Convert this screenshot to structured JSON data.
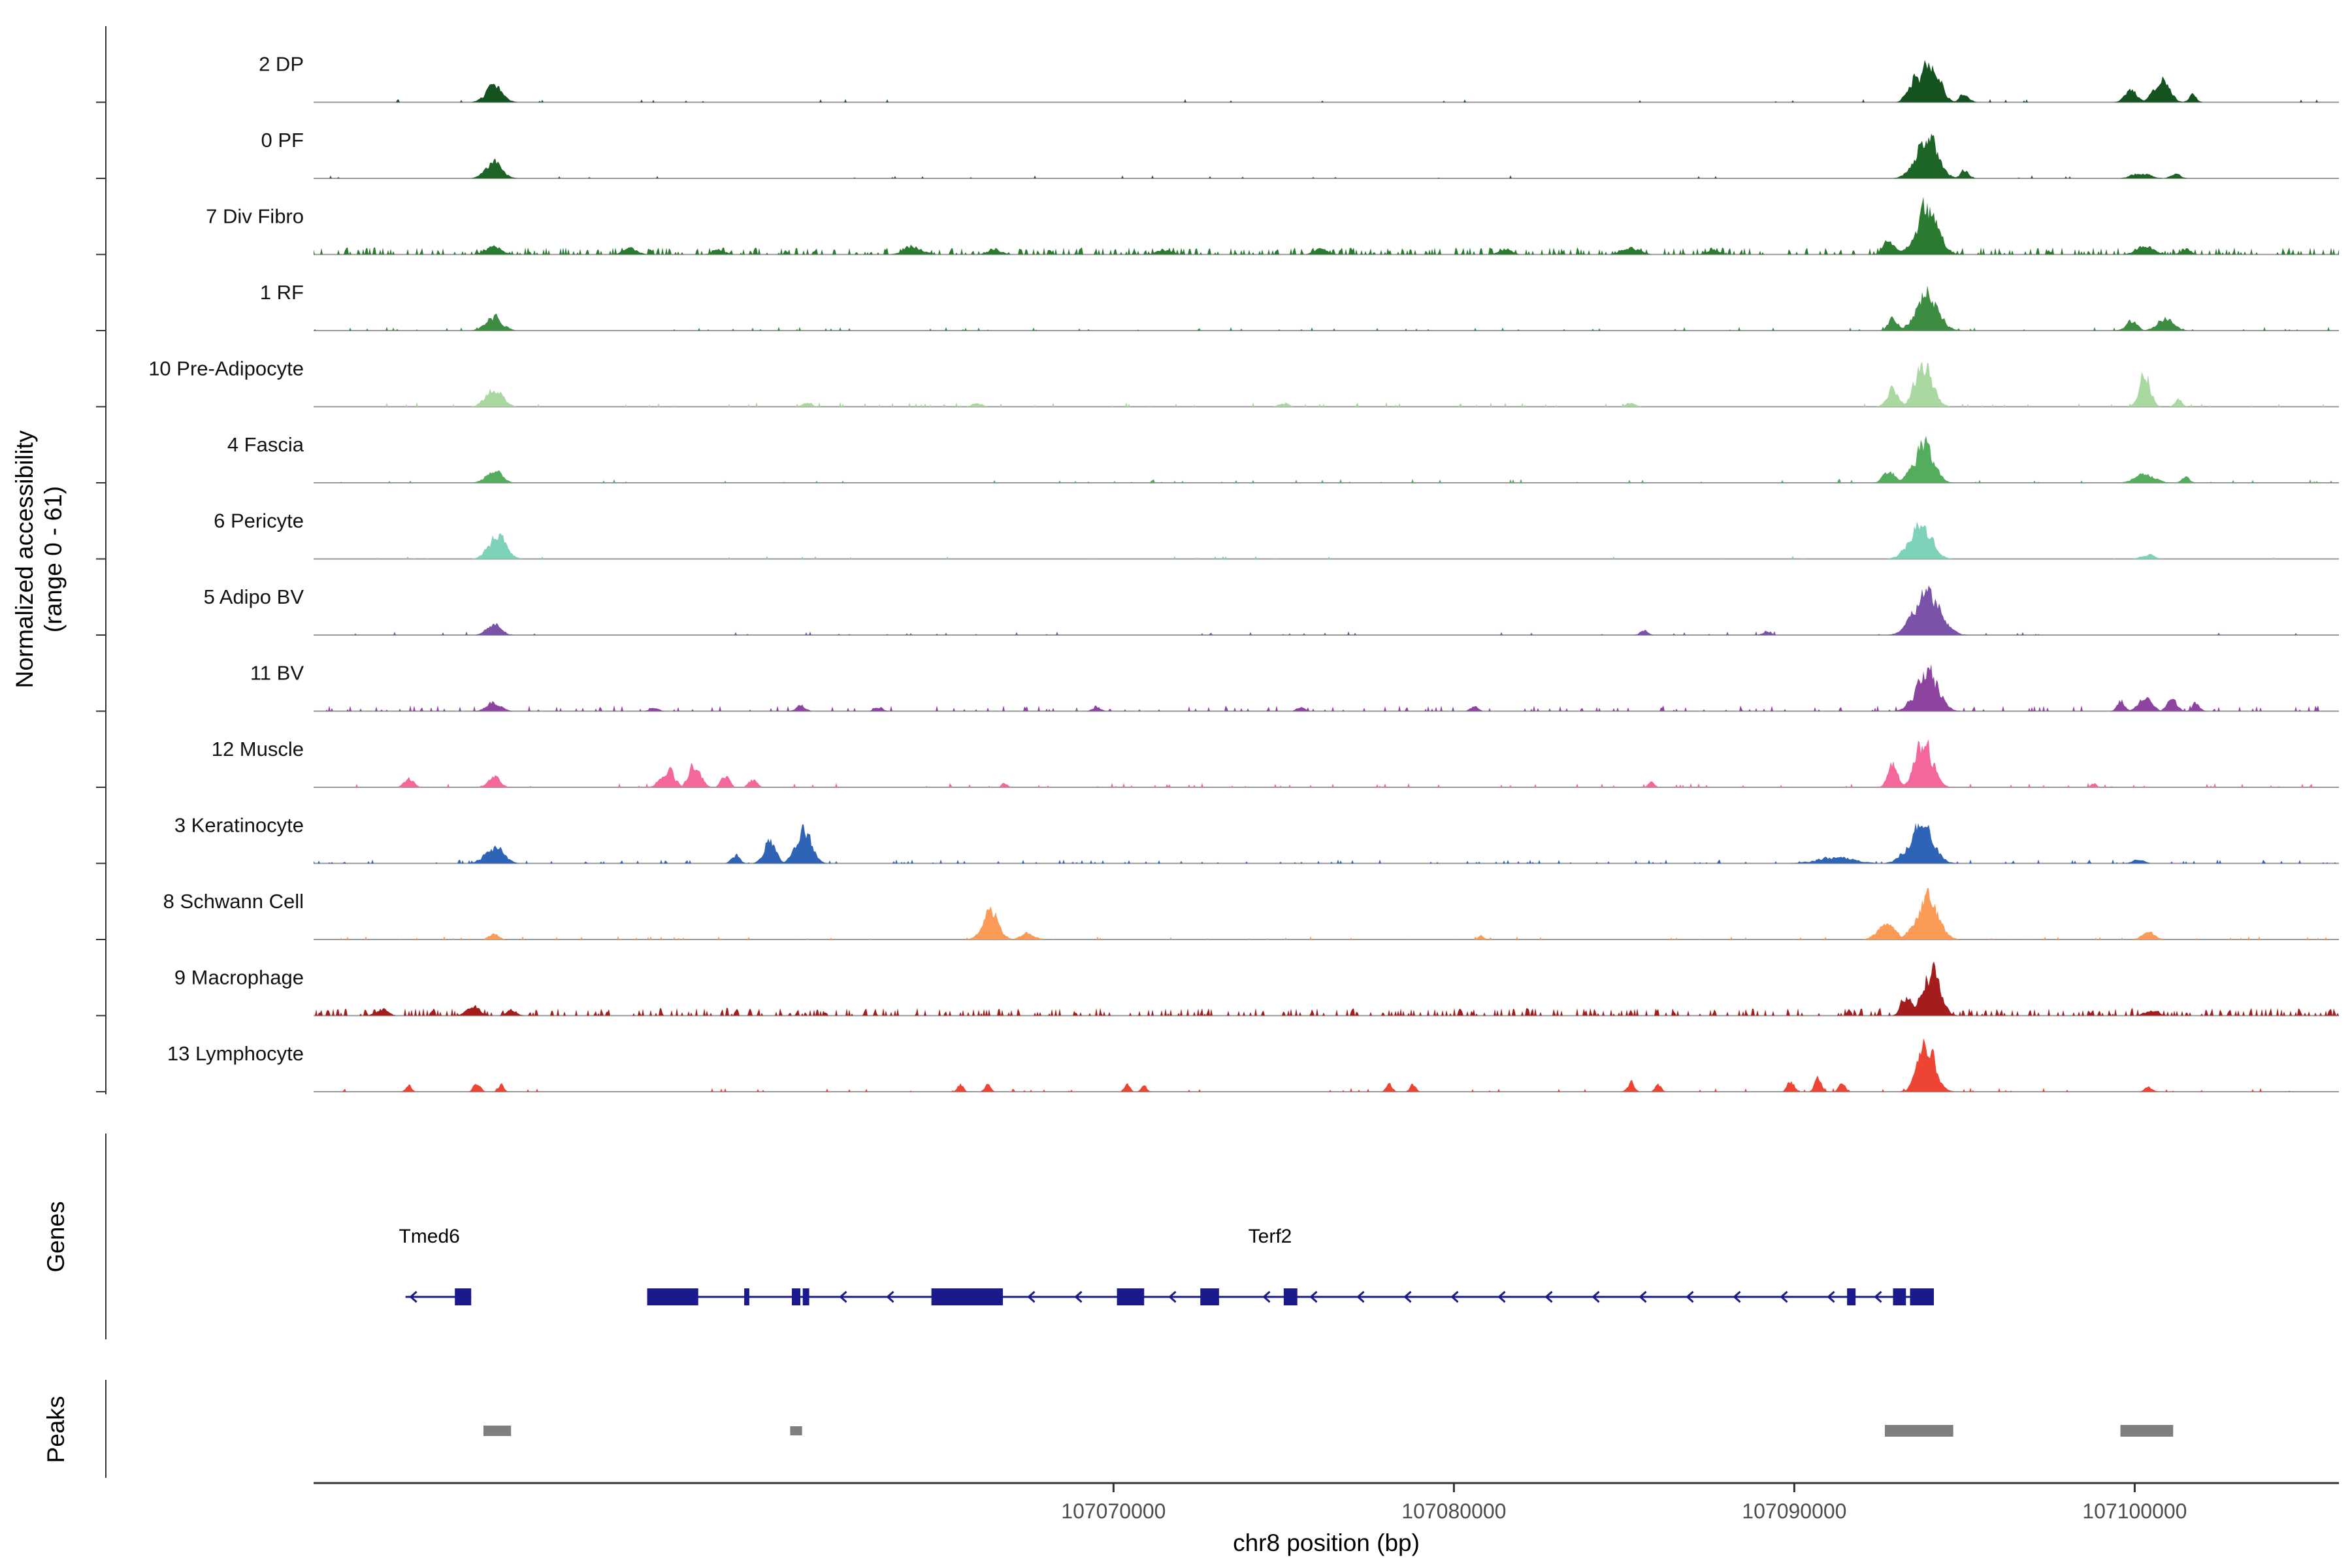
{
  "figure": {
    "y_axis_label_line1": "Normalized accessibility",
    "y_axis_label_line2": "(range 0 - 61)",
    "genes_section_label": "Genes",
    "peaks_section_label": "Peaks",
    "x_axis_title": "chr8 position (bp)"
  },
  "chart_data": {
    "type": "area",
    "title": "",
    "region": {
      "chrom": "chr8",
      "start": 107046500,
      "end": 107106000
    },
    "y_range": [
      0,
      61
    ],
    "x_ticks": [
      107070000,
      107080000,
      107090000,
      107100000
    ],
    "x_tick_labels": [
      "107070000",
      "107080000",
      "107090000",
      "107100000"
    ],
    "gene_color": "#1a1a8c",
    "peak_color": "#7f7f7f",
    "baseline_color": "#999999",
    "axis_color": "#333333",
    "tracks": [
      {
        "label": "2 DP",
        "color": "#14531f",
        "noise": [
          0.02,
          0.05
        ],
        "peaks": [
          [
            107051800,
            850,
            0.34
          ],
          [
            107093500,
            600,
            0.62
          ],
          [
            107094000,
            900,
            1.0
          ],
          [
            107095000,
            450,
            0.22
          ],
          [
            107099900,
            600,
            0.3
          ],
          [
            107100800,
            800,
            0.48
          ],
          [
            107101700,
            400,
            0.16
          ]
        ]
      },
      {
        "label": "0 PF",
        "color": "#1d6427",
        "noise": [
          0.025,
          0.05
        ],
        "peaks": [
          [
            107051800,
            850,
            0.34
          ],
          [
            107093900,
            1100,
            0.92
          ],
          [
            107095000,
            450,
            0.18
          ],
          [
            107100200,
            900,
            0.13
          ],
          [
            107101200,
            500,
            0.11
          ]
        ]
      },
      {
        "label": "7 Div Fibro",
        "color": "#2a7a30",
        "noise": [
          0.3,
          0.11
        ],
        "peaks": [
          [
            107051800,
            800,
            0.17
          ],
          [
            107055800,
            700,
            0.13
          ],
          [
            107058400,
            600,
            0.11
          ],
          [
            107064100,
            900,
            0.2
          ],
          [
            107066500,
            700,
            0.12
          ],
          [
            107071500,
            800,
            0.1
          ],
          [
            107076100,
            700,
            0.12
          ],
          [
            107081500,
            700,
            0.1
          ],
          [
            107085200,
            900,
            0.15
          ],
          [
            107087600,
            600,
            0.12
          ],
          [
            107092800,
            600,
            0.3
          ],
          [
            107093900,
            1100,
            1.0
          ],
          [
            107100300,
            900,
            0.18
          ],
          [
            107101500,
            500,
            0.12
          ]
        ]
      },
      {
        "label": "1 RF",
        "color": "#3c8d42",
        "noise": [
          0.05,
          0.06
        ],
        "peaks": [
          [
            107051800,
            850,
            0.3
          ],
          [
            107092900,
            500,
            0.28
          ],
          [
            107093900,
            1100,
            0.88
          ],
          [
            107099900,
            600,
            0.2
          ],
          [
            107100900,
            800,
            0.3
          ]
        ]
      },
      {
        "label": "10 Pre-Adipocyte",
        "color": "#a9d8a0",
        "noise": [
          0.06,
          0.07
        ],
        "peaks": [
          [
            107051800,
            850,
            0.4
          ],
          [
            107061000,
            500,
            0.09
          ],
          [
            107066000,
            500,
            0.09
          ],
          [
            107075000,
            500,
            0.08
          ],
          [
            107085200,
            500,
            0.09
          ],
          [
            107092900,
            600,
            0.38
          ],
          [
            107093800,
            900,
            0.95
          ],
          [
            107100300,
            550,
            0.78
          ],
          [
            107101300,
            400,
            0.14
          ]
        ]
      },
      {
        "label": "4 Fascia",
        "color": "#54ad5c",
        "noise": [
          0.035,
          0.06
        ],
        "peaks": [
          [
            107051800,
            800,
            0.28
          ],
          [
            107092800,
            600,
            0.28
          ],
          [
            107093800,
            1000,
            0.85
          ],
          [
            107100300,
            1000,
            0.2
          ],
          [
            107101500,
            400,
            0.12
          ]
        ]
      },
      {
        "label": "6 Pericyte",
        "color": "#7fd2ba",
        "noise": [
          0.02,
          0.05
        ],
        "peaks": [
          [
            107051900,
            900,
            0.5
          ],
          [
            107093700,
            1100,
            0.75
          ],
          [
            107100400,
            700,
            0.1
          ]
        ]
      },
      {
        "label": "5 Adipo BV",
        "color": "#7a52a8",
        "noise": [
          0.04,
          0.06
        ],
        "peaks": [
          [
            107051800,
            700,
            0.28
          ],
          [
            107085600,
            400,
            0.11
          ],
          [
            107089200,
            400,
            0.1
          ],
          [
            107093900,
            1300,
            0.95
          ]
        ]
      },
      {
        "label": "11 BV",
        "color": "#8d44a0",
        "noise": [
          0.1,
          0.09
        ],
        "peaks": [
          [
            107051800,
            700,
            0.2
          ],
          [
            107056500,
            400,
            0.11
          ],
          [
            107060800,
            500,
            0.13
          ],
          [
            107063100,
            400,
            0.1
          ],
          [
            107069500,
            400,
            0.1
          ],
          [
            107075500,
            400,
            0.11
          ],
          [
            107080600,
            400,
            0.1
          ],
          [
            107093900,
            1100,
            0.92
          ],
          [
            107099600,
            400,
            0.24
          ],
          [
            107100300,
            700,
            0.3
          ],
          [
            107101100,
            500,
            0.26
          ],
          [
            107101800,
            400,
            0.18
          ]
        ]
      },
      {
        "label": "12 Muscle",
        "color": "#f4679d",
        "noise": [
          0.06,
          0.07
        ],
        "peaks": [
          [
            107049300,
            500,
            0.18
          ],
          [
            107051800,
            600,
            0.26
          ],
          [
            107056900,
            700,
            0.4
          ],
          [
            107057700,
            600,
            0.5
          ],
          [
            107058600,
            400,
            0.28
          ],
          [
            107059400,
            400,
            0.18
          ],
          [
            107066800,
            300,
            0.1
          ],
          [
            107085800,
            300,
            0.12
          ],
          [
            107092900,
            500,
            0.48
          ],
          [
            107093800,
            900,
            0.98
          ],
          [
            107098800,
            300,
            0.08
          ]
        ]
      },
      {
        "label": "3 Keratinocyte",
        "color": "#2e64b5",
        "noise": [
          0.1,
          0.06
        ],
        "peaks": [
          [
            107051800,
            900,
            0.4
          ],
          [
            107058900,
            400,
            0.2
          ],
          [
            107059900,
            600,
            0.52
          ],
          [
            107060900,
            800,
            0.7
          ],
          [
            107091200,
            1800,
            0.14
          ],
          [
            107093700,
            1200,
            0.88
          ],
          [
            107100100,
            600,
            0.08
          ]
        ]
      },
      {
        "label": "8 Schwann Cell",
        "color": "#fb9b57",
        "noise": [
          0.05,
          0.05
        ],
        "peaks": [
          [
            107051800,
            500,
            0.12
          ],
          [
            107066400,
            800,
            0.62
          ],
          [
            107067500,
            700,
            0.14
          ],
          [
            107080800,
            300,
            0.08
          ],
          [
            107092700,
            900,
            0.34
          ],
          [
            107093900,
            1100,
            0.88
          ],
          [
            107100400,
            700,
            0.15
          ]
        ]
      },
      {
        "label": "9 Macrophage",
        "color": "#a31d1d",
        "noise": [
          0.3,
          0.12
        ],
        "peaks": [
          [
            107048500,
            600,
            0.14
          ],
          [
            107051200,
            700,
            0.2
          ],
          [
            107052300,
            500,
            0.16
          ],
          [
            107093300,
            500,
            0.5
          ],
          [
            107094000,
            900,
            0.98
          ],
          [
            107100500,
            700,
            0.1
          ]
        ]
      },
      {
        "label": "13 Lymphocyte",
        "color": "#ee4434",
        "noise": [
          0.04,
          0.06
        ],
        "peaks": [
          [
            107049300,
            300,
            0.15
          ],
          [
            107051300,
            350,
            0.2
          ],
          [
            107052000,
            300,
            0.16
          ],
          [
            107065500,
            300,
            0.16
          ],
          [
            107066300,
            300,
            0.15
          ],
          [
            107070400,
            300,
            0.16
          ],
          [
            107070900,
            300,
            0.13
          ],
          [
            107078100,
            300,
            0.2
          ],
          [
            107078800,
            300,
            0.16
          ],
          [
            107085200,
            350,
            0.22
          ],
          [
            107086000,
            300,
            0.18
          ],
          [
            107089900,
            350,
            0.26
          ],
          [
            107090700,
            350,
            0.3
          ],
          [
            107091400,
            300,
            0.22
          ],
          [
            107093900,
            900,
            1.0
          ],
          [
            107100400,
            400,
            0.1
          ]
        ]
      }
    ],
    "genes": [
      {
        "name": "Tmed6",
        "strand": "-",
        "start": 107049200,
        "end": 107051130,
        "label_bp": 107049900,
        "exons": [
          [
            107050650,
            107051130
          ]
        ]
      },
      {
        "name": "Terf2",
        "strand": "-",
        "start": 107056300,
        "end": 107094100,
        "label_bp": 107074600,
        "exons": [
          [
            107056300,
            107057800
          ],
          [
            107059150,
            107059300
          ],
          [
            107060550,
            107060800
          ],
          [
            107060870,
            107061060
          ],
          [
            107064650,
            107066750
          ],
          [
            107070100,
            107070900
          ],
          [
            107072550,
            107073100
          ],
          [
            107075000,
            107075400
          ],
          [
            107091550,
            107091800
          ],
          [
            107092900,
            107093280
          ],
          [
            107093400,
            107094100
          ]
        ]
      }
    ],
    "peak_regions": [
      [
        107051490,
        107052300,
        16
      ],
      [
        107060500,
        107060850,
        14
      ],
      [
        107092660,
        107094670,
        18
      ],
      [
        107099580,
        107101130,
        18
      ]
    ]
  }
}
